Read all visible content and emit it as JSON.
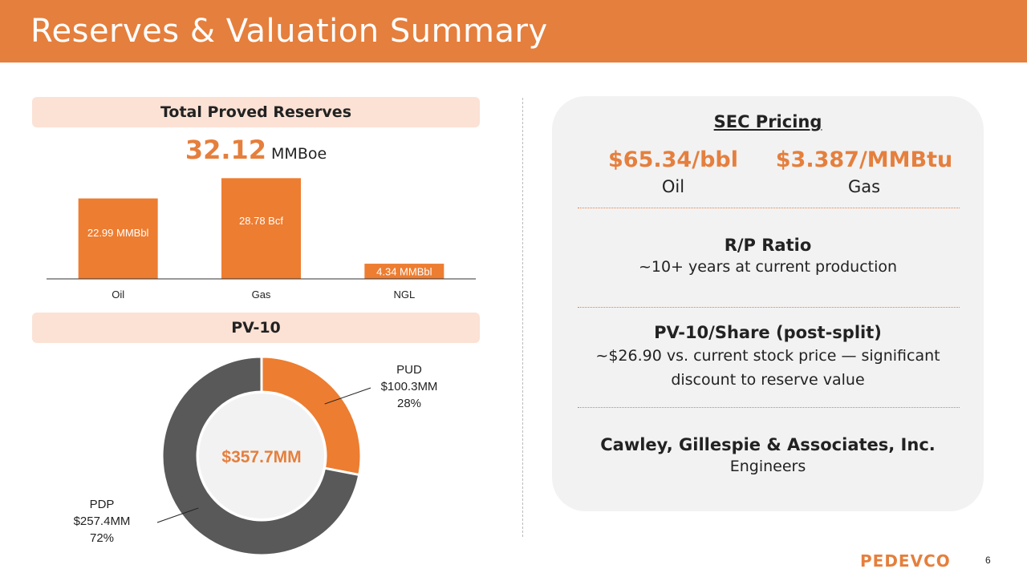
{
  "slide": {
    "title": "Reserves & Valuation Summary",
    "page_number": "6",
    "logo_text": "PEDEVCO"
  },
  "reserves": {
    "heading": "Total Proved Reserves",
    "total_value": "32.12",
    "total_unit": "MMBoe"
  },
  "pv10": {
    "heading": "PV-10"
  },
  "chart_data": [
    {
      "type": "bar",
      "categories": [
        "Oil",
        "Gas",
        "NGL"
      ],
      "values": [
        22.99,
        28.78,
        4.34
      ],
      "data_labels": [
        "22.99 MMBbl",
        "28.78 Bcf",
        "4.34 MMBbl"
      ],
      "title": "",
      "xlabel": "",
      "ylabel": "",
      "ylim": [
        0,
        30
      ],
      "colors": [
        "#ED7D31"
      ]
    },
    {
      "type": "pie",
      "donut": true,
      "center_label": "$357.7MM",
      "slices": [
        {
          "name": "PUD",
          "value": 100.3,
          "amount_label": "$100.3MM",
          "percent_label": "28%",
          "color": "#ED7D31"
        },
        {
          "name": "PDP",
          "value": 257.4,
          "amount_label": "$257.4MM",
          "percent_label": "72%",
          "color": "#595959"
        }
      ]
    }
  ],
  "panel": {
    "sec_heading": "SEC Pricing",
    "oil_price": "$65.34/bbl",
    "oil_label": "Oil",
    "gas_price": "$3.387/MMBtu",
    "gas_label": "Gas",
    "rp_title": "R/P Ratio",
    "rp_desc": "~10+ years at current production",
    "share_title": "PV-10/Share (post-split)",
    "share_desc": "~$26.90 vs. current stock price — significant discount to reserve value",
    "eng_title": "Cawley, Gillespie & Associates, Inc.",
    "eng_desc": "Engineers"
  },
  "colors": {
    "accent": "#E57F3D",
    "bar": "#ED7D31",
    "pill_bg": "#FBE2D5",
    "panel_bg": "#F2F2F2",
    "dark_slice": "#595959"
  }
}
